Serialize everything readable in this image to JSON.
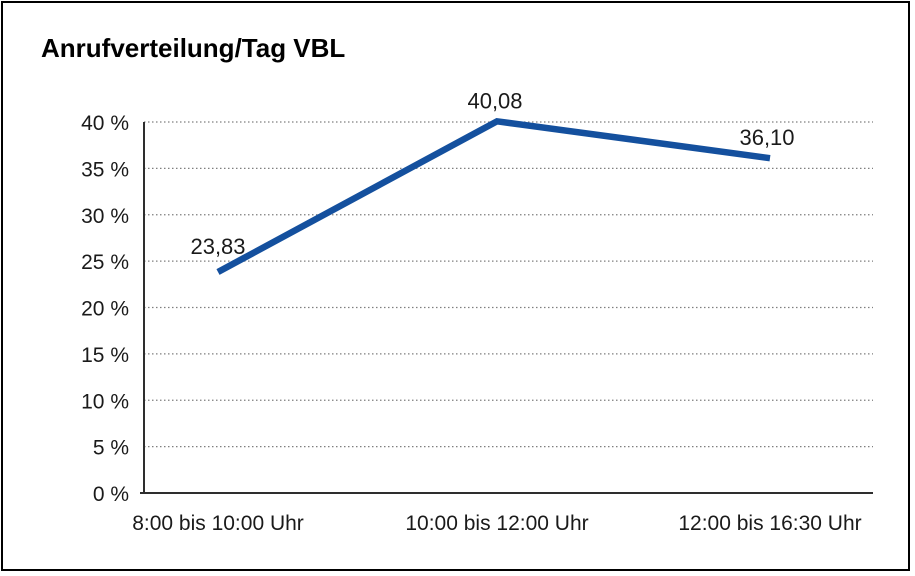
{
  "window": {
    "background_color": "#ffffff",
    "border_color": "#000000"
  },
  "chart_data": {
    "type": "line",
    "title": "Anrufverteilung/Tag VBL",
    "categories": [
      "8:00 bis 10:00 Uhr",
      "10:00 bis 12:00 Uhr",
      "12:00 bis 16:30 Uhr"
    ],
    "values": [
      23.83,
      40.08,
      36.1
    ],
    "value_labels": [
      "23,83",
      "40,08",
      "36,10"
    ],
    "xlabel": "",
    "ylabel": "",
    "ylim": [
      0,
      40
    ],
    "y_tick_step": 5,
    "y_ticks": [
      "0 %",
      "5 %",
      "10 %",
      "15 %",
      "20 %",
      "25 %",
      "30 %",
      "35 %",
      "40 %"
    ],
    "y_tick_values": [
      0,
      5,
      10,
      15,
      20,
      25,
      30,
      35,
      40
    ],
    "grid": "horizontal-dotted",
    "legend_position": "none",
    "line_color": "#14509E",
    "axis_color": "#2e2e2e",
    "grid_color": "#7f7f7f",
    "text_color": "#1a1a1a"
  }
}
